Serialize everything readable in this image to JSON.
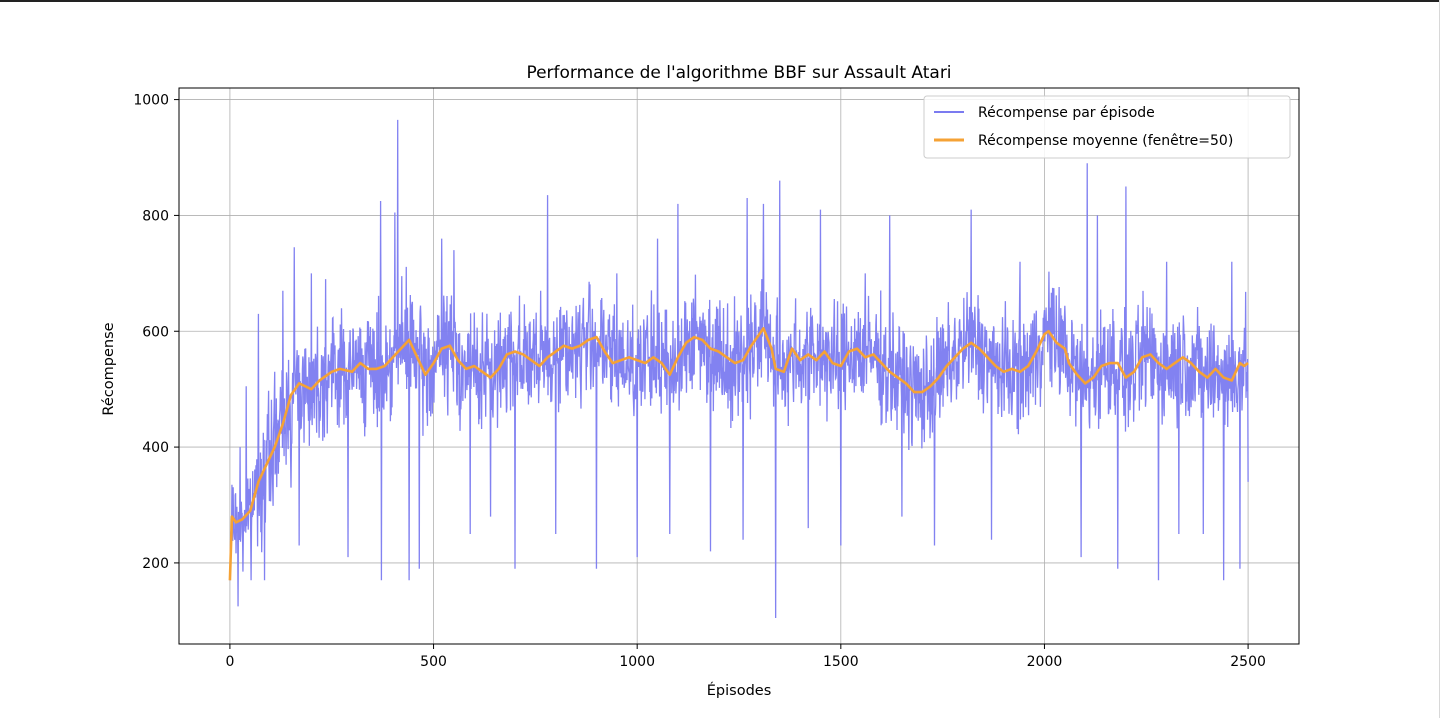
{
  "chart_data": {
    "type": "line",
    "title": "Performance de l'algorithme BBF sur Assault Atari",
    "xlabel": "Épisodes",
    "ylabel": "Récompense",
    "xlim": [
      -125,
      2625
    ],
    "ylim": [
      60,
      1020
    ],
    "xticks": [
      0,
      500,
      1000,
      1500,
      2000,
      2500
    ],
    "yticks": [
      200,
      400,
      600,
      800,
      1000
    ],
    "grid": true,
    "legend_position": "top-right",
    "series": [
      {
        "name": "Récompense par épisode",
        "color": "#7b7bf0",
        "noise_seed": 7,
        "spread": 95,
        "spike_points": [
          [
            0,
            170
          ],
          [
            5,
            335
          ],
          [
            12,
            240
          ],
          [
            20,
            125
          ],
          [
            25,
            400
          ],
          [
            32,
            185
          ],
          [
            40,
            505
          ],
          [
            52,
            170
          ],
          [
            70,
            630
          ],
          [
            85,
            170
          ],
          [
            110,
            530
          ],
          [
            130,
            670
          ],
          [
            150,
            330
          ],
          [
            158,
            745
          ],
          [
            170,
            230
          ],
          [
            200,
            700
          ],
          [
            235,
            690
          ],
          [
            290,
            210
          ],
          [
            370,
            825
          ],
          [
            372,
            170
          ],
          [
            405,
            805
          ],
          [
            412,
            965
          ],
          [
            440,
            170
          ],
          [
            465,
            190
          ],
          [
            520,
            760
          ],
          [
            550,
            740
          ],
          [
            590,
            250
          ],
          [
            640,
            280
          ],
          [
            700,
            190
          ],
          [
            780,
            835
          ],
          [
            800,
            250
          ],
          [
            900,
            190
          ],
          [
            950,
            700
          ],
          [
            1000,
            210
          ],
          [
            1050,
            760
          ],
          [
            1080,
            250
          ],
          [
            1100,
            820
          ],
          [
            1180,
            220
          ],
          [
            1260,
            240
          ],
          [
            1270,
            830
          ],
          [
            1310,
            820
          ],
          [
            1340,
            105
          ],
          [
            1350,
            860
          ],
          [
            1420,
            260
          ],
          [
            1450,
            810
          ],
          [
            1500,
            230
          ],
          [
            1560,
            700
          ],
          [
            1620,
            800
          ],
          [
            1650,
            280
          ],
          [
            1730,
            230
          ],
          [
            1820,
            810
          ],
          [
            1870,
            240
          ],
          [
            1940,
            720
          ],
          [
            2040,
            640
          ],
          [
            2090,
            210
          ],
          [
            2105,
            890
          ],
          [
            2130,
            800
          ],
          [
            2180,
            190
          ],
          [
            2200,
            850
          ],
          [
            2280,
            170
          ],
          [
            2300,
            720
          ],
          [
            2330,
            250
          ],
          [
            2390,
            250
          ],
          [
            2440,
            170
          ],
          [
            2460,
            720
          ],
          [
            2480,
            190
          ],
          [
            2500,
            340
          ]
        ]
      },
      {
        "name": "Récompense moyenne (fenêtre=50)",
        "color": "#f5a235",
        "points": [
          [
            0,
            170
          ],
          [
            5,
            280
          ],
          [
            15,
            270
          ],
          [
            30,
            275
          ],
          [
            50,
            290
          ],
          [
            70,
            340
          ],
          [
            90,
            370
          ],
          [
            110,
            400
          ],
          [
            130,
            440
          ],
          [
            150,
            490
          ],
          [
            170,
            510
          ],
          [
            200,
            500
          ],
          [
            220,
            515
          ],
          [
            250,
            530
          ],
          [
            270,
            535
          ],
          [
            300,
            530
          ],
          [
            320,
            545
          ],
          [
            340,
            535
          ],
          [
            360,
            535
          ],
          [
            380,
            540
          ],
          [
            400,
            555
          ],
          [
            420,
            570
          ],
          [
            440,
            585
          ],
          [
            460,
            555
          ],
          [
            480,
            525
          ],
          [
            500,
            545
          ],
          [
            520,
            570
          ],
          [
            540,
            575
          ],
          [
            560,
            550
          ],
          [
            580,
            535
          ],
          [
            600,
            540
          ],
          [
            620,
            530
          ],
          [
            640,
            520
          ],
          [
            660,
            535
          ],
          [
            680,
            560
          ],
          [
            700,
            565
          ],
          [
            720,
            560
          ],
          [
            740,
            550
          ],
          [
            760,
            540
          ],
          [
            780,
            555
          ],
          [
            800,
            565
          ],
          [
            820,
            575
          ],
          [
            840,
            570
          ],
          [
            860,
            575
          ],
          [
            880,
            585
          ],
          [
            900,
            590
          ],
          [
            920,
            565
          ],
          [
            940,
            545
          ],
          [
            960,
            550
          ],
          [
            980,
            555
          ],
          [
            1000,
            550
          ],
          [
            1020,
            545
          ],
          [
            1040,
            555
          ],
          [
            1060,
            545
          ],
          [
            1080,
            525
          ],
          [
            1100,
            555
          ],
          [
            1120,
            580
          ],
          [
            1140,
            590
          ],
          [
            1160,
            585
          ],
          [
            1180,
            570
          ],
          [
            1200,
            565
          ],
          [
            1220,
            555
          ],
          [
            1240,
            545
          ],
          [
            1260,
            550
          ],
          [
            1280,
            575
          ],
          [
            1300,
            595
          ],
          [
            1310,
            605
          ],
          [
            1330,
            570
          ],
          [
            1340,
            535
          ],
          [
            1360,
            530
          ],
          [
            1380,
            570
          ],
          [
            1400,
            550
          ],
          [
            1420,
            560
          ],
          [
            1440,
            550
          ],
          [
            1460,
            565
          ],
          [
            1480,
            545
          ],
          [
            1500,
            540
          ],
          [
            1520,
            565
          ],
          [
            1540,
            570
          ],
          [
            1560,
            555
          ],
          [
            1580,
            560
          ],
          [
            1600,
            545
          ],
          [
            1620,
            530
          ],
          [
            1640,
            520
          ],
          [
            1660,
            510
          ],
          [
            1680,
            495
          ],
          [
            1700,
            495
          ],
          [
            1720,
            505
          ],
          [
            1740,
            520
          ],
          [
            1760,
            540
          ],
          [
            1780,
            555
          ],
          [
            1800,
            570
          ],
          [
            1820,
            580
          ],
          [
            1840,
            570
          ],
          [
            1860,
            555
          ],
          [
            1880,
            540
          ],
          [
            1900,
            530
          ],
          [
            1920,
            535
          ],
          [
            1940,
            530
          ],
          [
            1960,
            540
          ],
          [
            1980,
            565
          ],
          [
            2000,
            595
          ],
          [
            2010,
            600
          ],
          [
            2030,
            580
          ],
          [
            2050,
            570
          ],
          [
            2060,
            545
          ],
          [
            2080,
            525
          ],
          [
            2100,
            510
          ],
          [
            2120,
            520
          ],
          [
            2140,
            540
          ],
          [
            2160,
            545
          ],
          [
            2180,
            545
          ],
          [
            2200,
            520
          ],
          [
            2220,
            530
          ],
          [
            2240,
            555
          ],
          [
            2260,
            560
          ],
          [
            2280,
            545
          ],
          [
            2300,
            535
          ],
          [
            2320,
            545
          ],
          [
            2340,
            555
          ],
          [
            2360,
            545
          ],
          [
            2380,
            530
          ],
          [
            2400,
            520
          ],
          [
            2420,
            535
          ],
          [
            2440,
            520
          ],
          [
            2460,
            515
          ],
          [
            2480,
            545
          ],
          [
            2490,
            540
          ],
          [
            2500,
            545
          ]
        ]
      }
    ]
  }
}
